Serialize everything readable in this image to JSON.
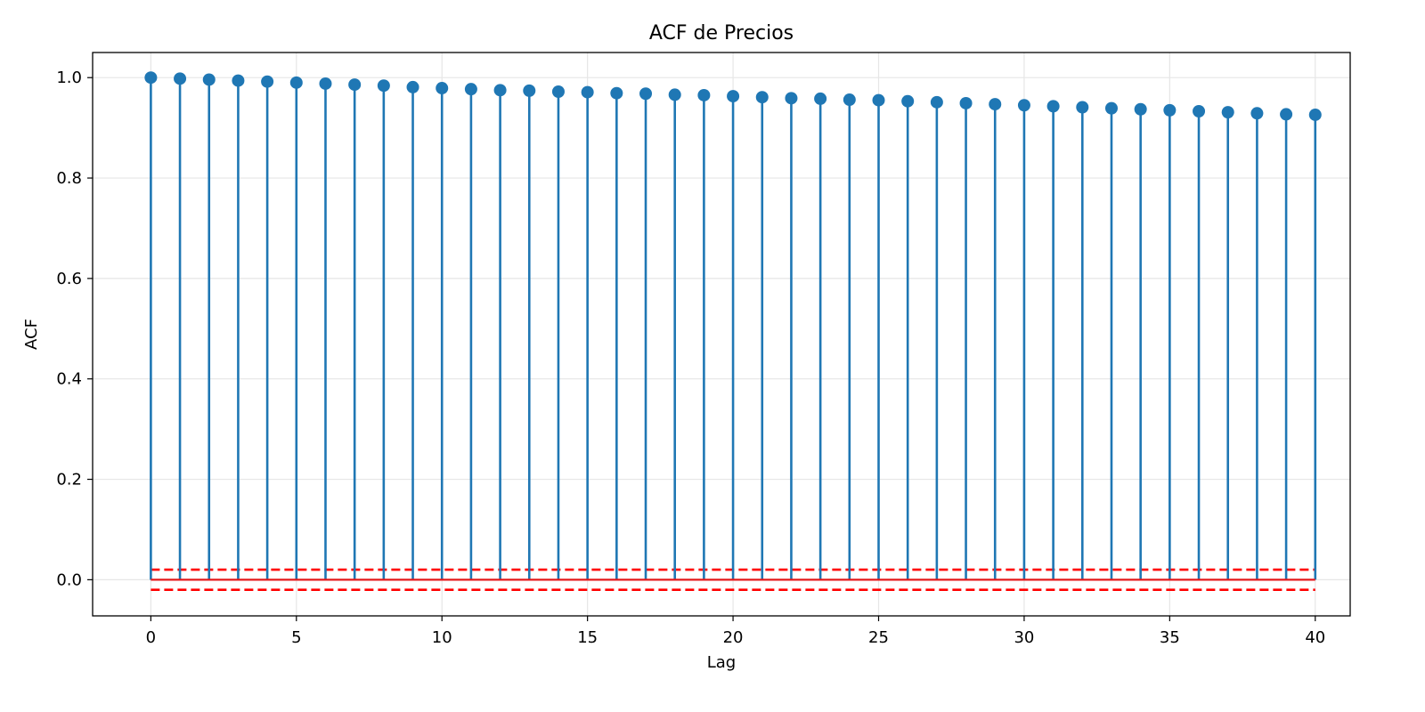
{
  "chart_data": {
    "type": "stem",
    "title": "ACF de Precios",
    "xlabel": "Lag",
    "ylabel": "ACF",
    "xlim": [
      -2,
      41.2
    ],
    "ylim": [
      -0.072,
      1.05
    ],
    "xticks": [
      0,
      5,
      10,
      15,
      20,
      25,
      30,
      35,
      40
    ],
    "yticks": [
      0.0,
      0.2,
      0.4,
      0.6,
      0.8,
      1.0
    ],
    "xtick_labels": [
      "0",
      "5",
      "10",
      "15",
      "20",
      "25",
      "30",
      "35",
      "40"
    ],
    "ytick_labels": [
      "0.0",
      "0.2",
      "0.4",
      "0.6",
      "0.8",
      "1.0"
    ],
    "grid": true,
    "series": [
      {
        "x": [
          0,
          1,
          2,
          3,
          4,
          5,
          6,
          7,
          8,
          9,
          10,
          11,
          12,
          13,
          14,
          15,
          16,
          17,
          18,
          19,
          20,
          21,
          22,
          23,
          24,
          25,
          26,
          27,
          28,
          29,
          30,
          31,
          32,
          33,
          34,
          35,
          36,
          37,
          38,
          39,
          40
        ],
        "values": [
          1.0,
          0.998,
          0.996,
          0.994,
          0.992,
          0.99,
          0.988,
          0.986,
          0.984,
          0.981,
          0.979,
          0.977,
          0.975,
          0.974,
          0.972,
          0.971,
          0.969,
          0.968,
          0.966,
          0.965,
          0.963,
          0.961,
          0.959,
          0.958,
          0.956,
          0.955,
          0.953,
          0.951,
          0.949,
          0.947,
          0.945,
          0.943,
          0.941,
          0.939,
          0.937,
          0.935,
          0.933,
          0.931,
          0.929,
          0.927,
          0.926
        ],
        "color": "#1f77b4"
      }
    ],
    "confidence_band": {
      "upper": 0.02,
      "lower": -0.02,
      "color": "#ff0000"
    },
    "baseline": {
      "y": 0,
      "color": "#e41a1c"
    }
  }
}
